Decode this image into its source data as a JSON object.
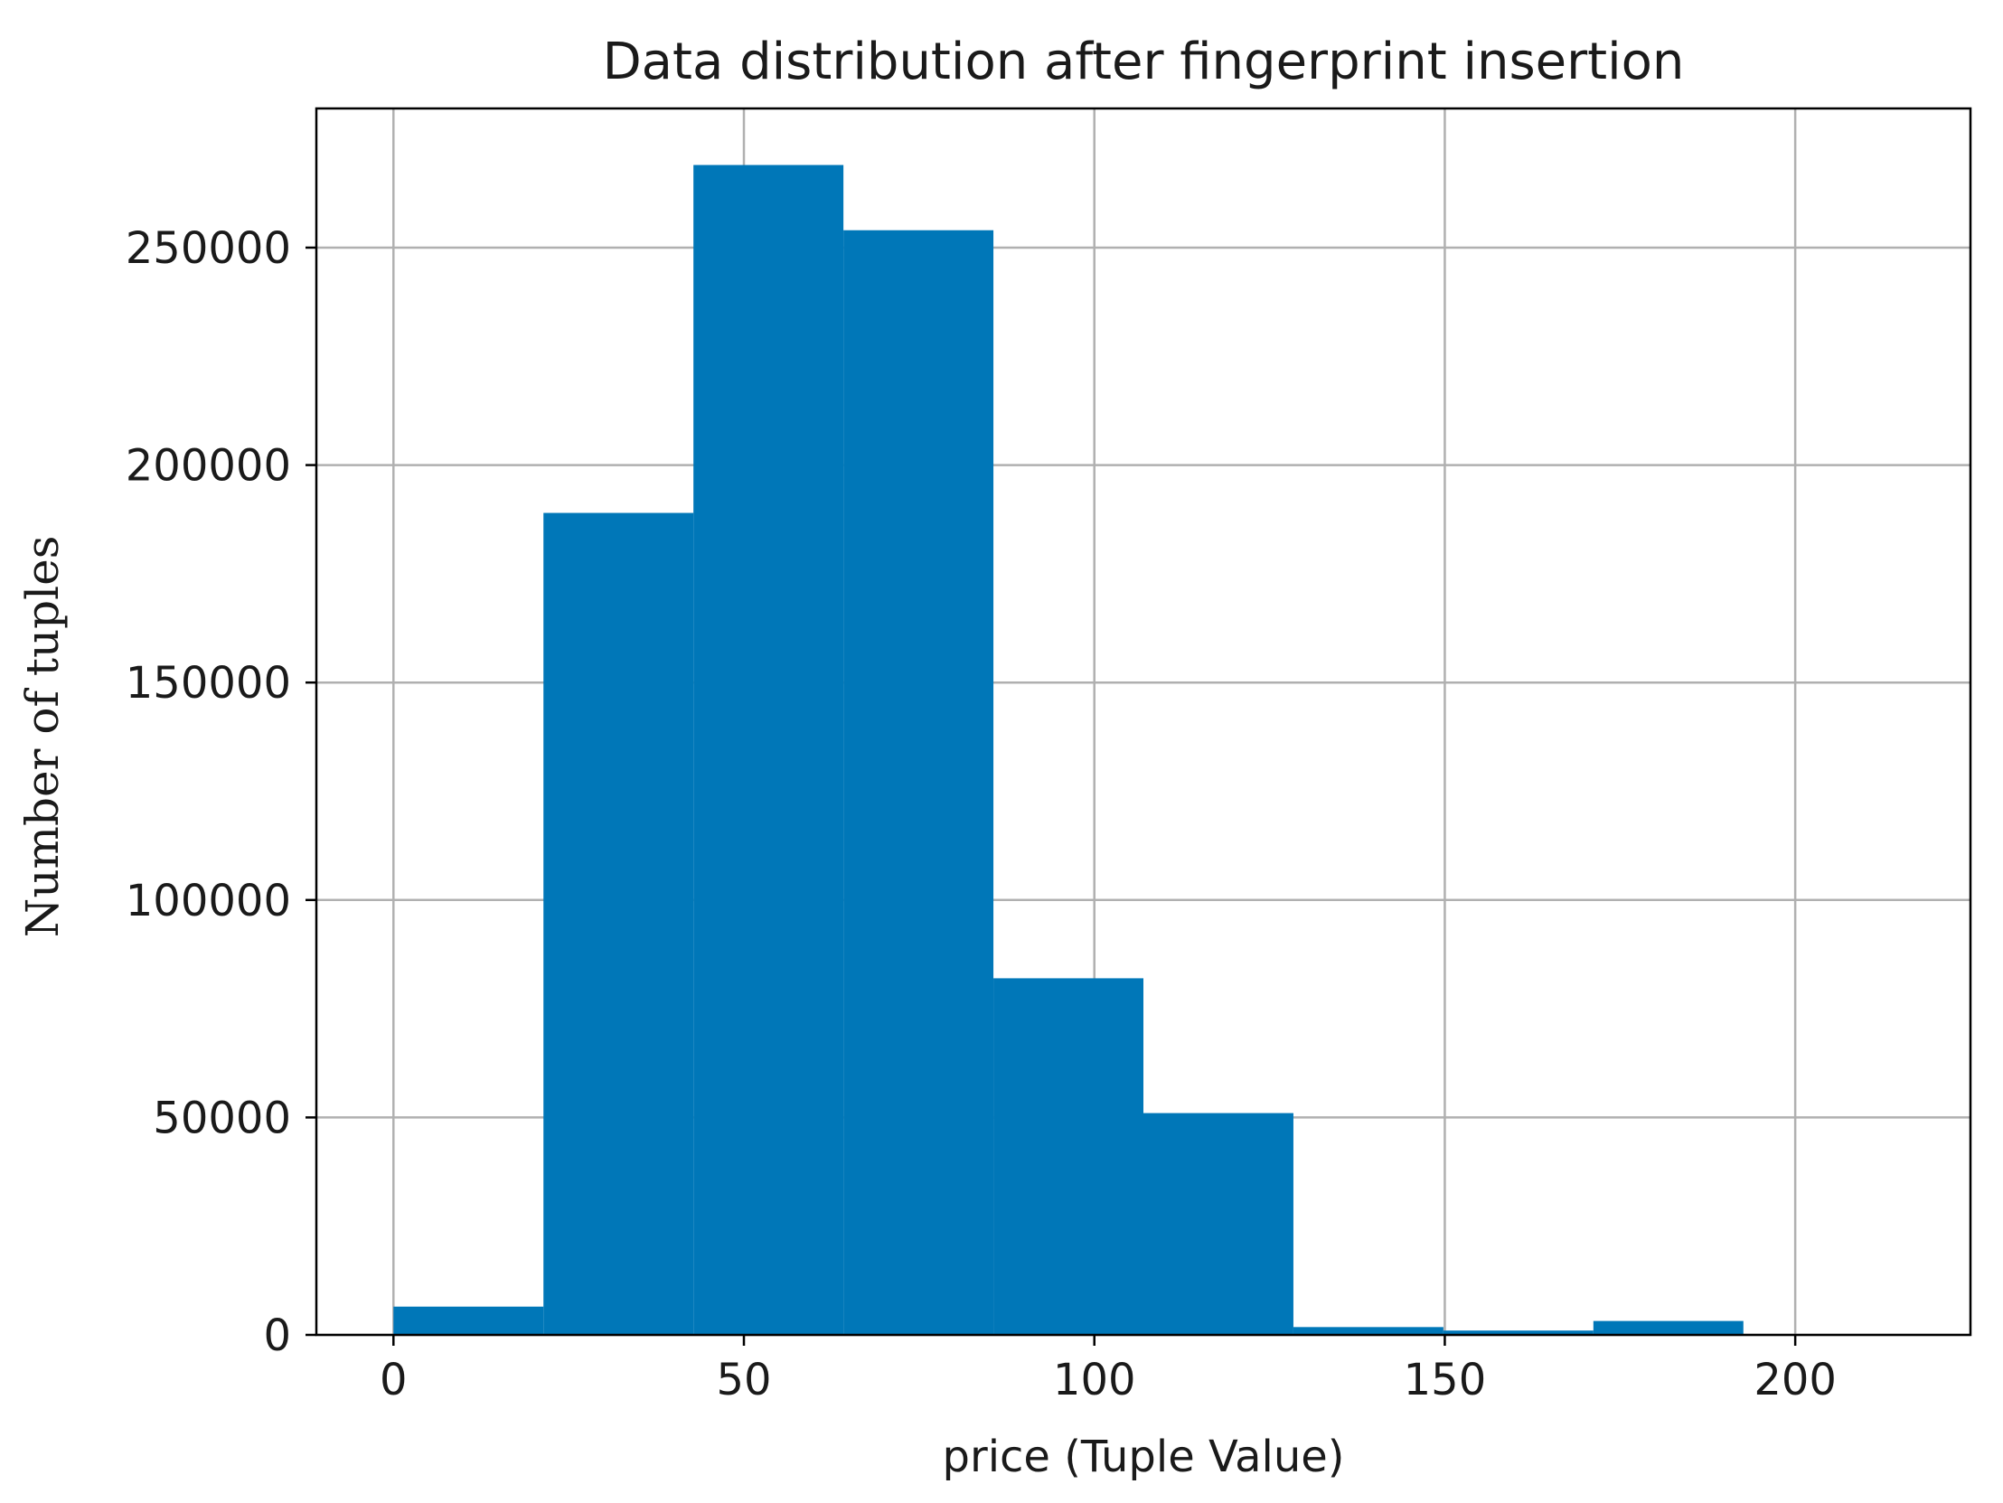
{
  "chart_data": {
    "type": "bar",
    "title": "Data distribution after fingerprint insertion",
    "xlabel": "price (Tuple Value)",
    "ylabel": "Number of tuples",
    "xlim": [
      -11,
      225
    ],
    "ylim": [
      0,
      282000
    ],
    "grid": true,
    "xticks": [
      0,
      50,
      100,
      150,
      200
    ],
    "yticks": [
      0,
      50000,
      100000,
      150000,
      200000,
      250000
    ],
    "bin_edges": [
      0,
      21.4,
      42.8,
      64.2,
      85.6,
      107.0,
      128.4,
      149.8,
      171.2,
      192.6,
      214.0
    ],
    "values": [
      6500,
      189000,
      269000,
      254000,
      82000,
      51000,
      1800,
      1000,
      3200,
      0
    ],
    "bar_color": "#0077b8"
  }
}
